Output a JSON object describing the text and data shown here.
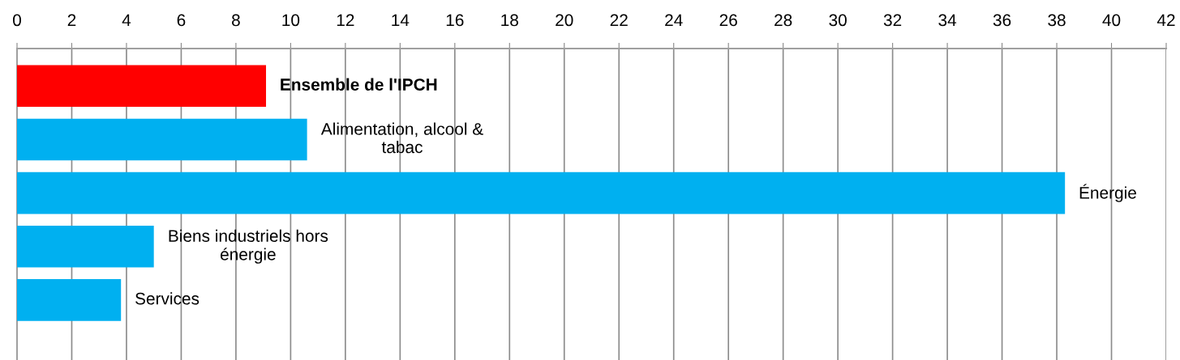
{
  "chart_data": {
    "type": "bar",
    "orientation": "horizontal",
    "categories": [
      "Ensemble de l'IPCH",
      "Alimentation, alcool & tabac",
      "Énergie",
      "Biens industriels hors énergie",
      "Services"
    ],
    "values": [
      9.1,
      10.6,
      38.3,
      5.0,
      3.8
    ],
    "colors": [
      "#ff0000",
      "#00b0f0",
      "#00b0f0",
      "#00b0f0",
      "#00b0f0"
    ],
    "xlim": [
      0,
      42
    ],
    "xticks": [
      0,
      2,
      4,
      6,
      8,
      10,
      12,
      14,
      16,
      18,
      20,
      22,
      24,
      26,
      28,
      30,
      32,
      34,
      36,
      38,
      40,
      42
    ],
    "grid": "x"
  }
}
